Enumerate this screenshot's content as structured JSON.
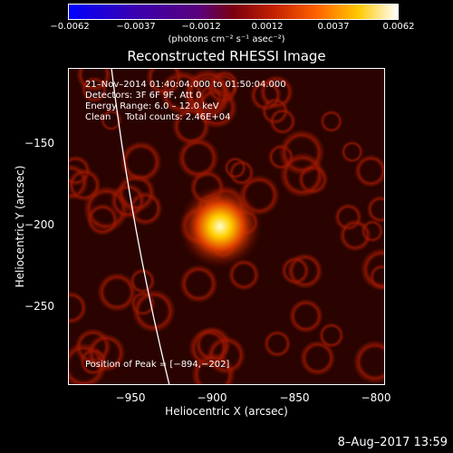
{
  "colorbar": {
    "ticks": [
      "−0.0062",
      "−0.0037",
      "−0.0012",
      "0.0012",
      "0.0037",
      "0.0062"
    ],
    "unit_label": "(photons cm⁻² s⁻¹ asec⁻²)"
  },
  "title": "Reconstructed RHESSI Image",
  "info": {
    "time": "21–Nov–2014 01:40:04.000 to 01:50:04.000",
    "detectors": "Detectors: 3F 6F 9F, Att 0",
    "energy": "Energy Range: 6.0 – 12.0 keV",
    "clean": "Clean     Total counts: 2.46E+04",
    "peak": "Position of Peak = [−894,−202]"
  },
  "axes": {
    "ylabel": "Heliocentric Y (arcsec)",
    "xlabel": "Heliocentric X (arcsec)",
    "yticks": [
      "−150",
      "−200",
      "−250"
    ],
    "xticks": [
      "−950",
      "−900",
      "−850",
      "−800"
    ]
  },
  "footer": "8–Aug–2017 13:59"
}
